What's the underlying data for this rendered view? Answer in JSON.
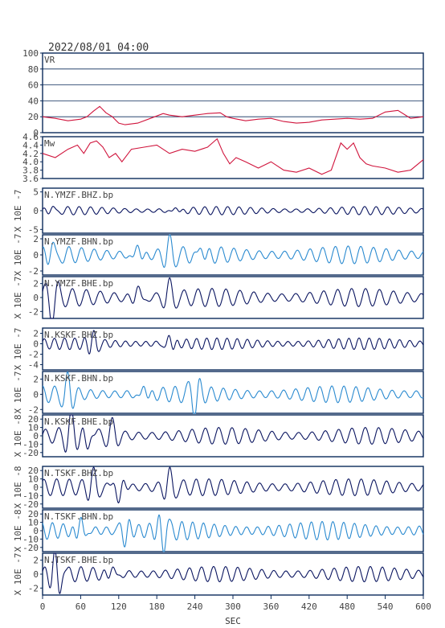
{
  "header": "2022/08/01 04:00",
  "xaxis": {
    "label": "SEC",
    "ticks": [
      "0",
      "60",
      "120",
      "180",
      "240",
      "300",
      "360",
      "420",
      "480",
      "540",
      "600"
    ],
    "range": [
      0,
      600
    ]
  },
  "colors": {
    "frame": "#0b2a5a",
    "text": "#444444",
    "trace_dark": "#0a1560",
    "trace_light": "#2a8ad0",
    "vr_mw": "#d0143c"
  },
  "chart_data": [
    {
      "type": "line",
      "panel": "vr",
      "label": "VR",
      "ylim": [
        0,
        100
      ],
      "yticks": [
        "0",
        "20",
        "40",
        "60",
        "80",
        "100"
      ],
      "grid": true,
      "color": "#d0143c",
      "series": {
        "x": [
          0,
          20,
          40,
          60,
          70,
          80,
          90,
          100,
          110,
          120,
          130,
          150,
          170,
          190,
          200,
          220,
          240,
          260,
          280,
          290,
          300,
          320,
          340,
          360,
          380,
          400,
          420,
          440,
          460,
          480,
          500,
          520,
          540,
          560,
          580,
          600
        ],
        "y": [
          20,
          18,
          15,
          17,
          20,
          27,
          33,
          25,
          20,
          12,
          10,
          12,
          18,
          24,
          22,
          20,
          22,
          24,
          25,
          20,
          18,
          15,
          17,
          18,
          14,
          12,
          13,
          16,
          17,
          18,
          17,
          18,
          26,
          28,
          18,
          20
        ]
      }
    },
    {
      "type": "line",
      "panel": "mw",
      "label": "Mw",
      "ylim": [
        3.6,
        4.6
      ],
      "yticks": [
        "3.6",
        "3.8",
        "4.0",
        "4.2",
        "4.4",
        "4.6"
      ],
      "grid": false,
      "color": "#d0143c",
      "series": {
        "x": [
          0,
          20,
          40,
          55,
          65,
          75,
          85,
          95,
          105,
          115,
          125,
          140,
          160,
          180,
          200,
          220,
          240,
          260,
          275,
          285,
          295,
          305,
          320,
          340,
          360,
          380,
          400,
          420,
          440,
          455,
          470,
          480,
          490,
          500,
          510,
          520,
          540,
          560,
          580,
          600
        ],
        "y": [
          4.2,
          4.1,
          4.3,
          4.4,
          4.2,
          4.45,
          4.5,
          4.35,
          4.1,
          4.2,
          4.0,
          4.3,
          4.35,
          4.4,
          4.2,
          4.3,
          4.25,
          4.35,
          4.55,
          4.2,
          3.95,
          4.1,
          4.0,
          3.85,
          4.0,
          3.8,
          3.75,
          3.85,
          3.7,
          3.8,
          4.45,
          4.3,
          4.45,
          4.1,
          3.95,
          3.9,
          3.85,
          3.75,
          3.8,
          4.05
        ]
      }
    },
    {
      "type": "line",
      "panel": "seis",
      "label": "N.YMZF.BHZ.bp",
      "ylabel": "X 10E -7",
      "ylim": [
        -6,
        6
      ],
      "yticks": [
        "-5",
        "0",
        "5"
      ],
      "color": "#0a1560",
      "wave": {
        "amplitude": 1.1,
        "period": 18,
        "phase": 0.3,
        "bursts": [
          [
            15,
            1.6
          ],
          [
            210,
            1.4
          ]
        ]
      }
    },
    {
      "type": "line",
      "panel": "seis",
      "label": "N.YMZF.BHN.bp",
      "ylabel": "X 10E -7",
      "ylim": [
        -2.5,
        2.5
      ],
      "yticks": [
        "-2",
        "0",
        "2"
      ],
      "color": "#2a8ad0",
      "wave": {
        "amplitude": 1.1,
        "period": 20,
        "phase": 1.1,
        "bursts": [
          [
            15,
            1.8
          ],
          [
            150,
            1.6
          ],
          [
            200,
            1.8
          ],
          [
            250,
            1.7
          ]
        ]
      }
    },
    {
      "type": "line",
      "panel": "seis",
      "label": "N.YMZF.BHE.bp",
      "ylabel": "X 10E -7",
      "ylim": [
        -3,
        3
      ],
      "yticks": [
        "-2",
        "0",
        "2"
      ],
      "color": "#0a1560",
      "wave": {
        "amplitude": 1.3,
        "period": 22,
        "phase": 0.7,
        "bursts": [
          [
            15,
            -2.8
          ],
          [
            150,
            1.8
          ],
          [
            200,
            2.0
          ]
        ]
      }
    },
    {
      "type": "line",
      "panel": "seis",
      "label": "N.KSKF.BHZ.bp",
      "ylabel": "X 10E -7",
      "ylim": [
        -5,
        3
      ],
      "yticks": [
        "-4",
        "-2",
        "0",
        "2"
      ],
      "color": "#0a1560",
      "wave": {
        "amplitude": 1.1,
        "period": 16,
        "phase": 0.5,
        "bursts": [
          [
            80,
            2.0
          ],
          [
            200,
            1.8
          ]
        ]
      }
    },
    {
      "type": "line",
      "panel": "seis",
      "label": "N.KSKF.BHN.bp",
      "ylabel": "X 10E -7",
      "ylim": [
        -2.5,
        3
      ],
      "yticks": [
        "-2",
        "0",
        "2"
      ],
      "color": "#2a8ad0",
      "wave": {
        "amplitude": 1.1,
        "period": 19,
        "phase": 1.6,
        "bursts": [
          [
            40,
            2.2
          ],
          [
            160,
            1.6
          ],
          [
            240,
            -2.3
          ]
        ]
      }
    },
    {
      "type": "line",
      "panel": "seis",
      "label": "N.KSKF.BHE.bp",
      "ylabel": "X 10E -8",
      "ylim": [
        -25,
        25
      ],
      "yticks": [
        "-20",
        "-10",
        "0",
        "10",
        "20"
      ],
      "color": "#0a1560",
      "wave": {
        "amplitude": 10,
        "period": 21,
        "phase": 0.2,
        "bursts": [
          [
            45,
            24
          ],
          [
            70,
            -22
          ],
          [
            110,
            15
          ]
        ]
      }
    },
    {
      "type": "line",
      "panel": "seis",
      "label": "N.TSKF.BHZ.bp",
      "ylabel": "X 10E -8",
      "ylim": [
        -25,
        25
      ],
      "yticks": [
        "-20",
        "-10",
        "0",
        "10",
        "20"
      ],
      "color": "#0a1560",
      "wave": {
        "amplitude": 10,
        "period": 20,
        "phase": 0.9,
        "bursts": [
          [
            80,
            18
          ],
          [
            120,
            -22
          ],
          [
            200,
            18
          ]
        ]
      }
    },
    {
      "type": "line",
      "panel": "seis",
      "label": "N.TSKF.BHN.bp",
      "ylabel": "X 10E -8",
      "ylim": [
        -25,
        25
      ],
      "yticks": [
        "-20",
        "-10",
        "0",
        "10",
        "20"
      ],
      "color": "#2a8ad0",
      "wave": {
        "amplitude": 11,
        "period": 17,
        "phase": 2.1,
        "bursts": [
          [
            60,
            20
          ],
          [
            130,
            -18
          ],
          [
            190,
            -24
          ]
        ]
      }
    },
    {
      "type": "line",
      "panel": "seis",
      "label": "N.TSKF.BHE.bp",
      "ylabel": "X 10E -7",
      "ylim": [
        -3,
        3
      ],
      "yticks": [
        "-2",
        "0",
        "2"
      ],
      "color": "#0a1560",
      "wave": {
        "amplitude": 1.1,
        "period": 19,
        "phase": 0.4,
        "bursts": [
          [
            20,
            2.6
          ],
          [
            25,
            -2.4
          ],
          [
            110,
            1.5
          ]
        ]
      }
    }
  ]
}
